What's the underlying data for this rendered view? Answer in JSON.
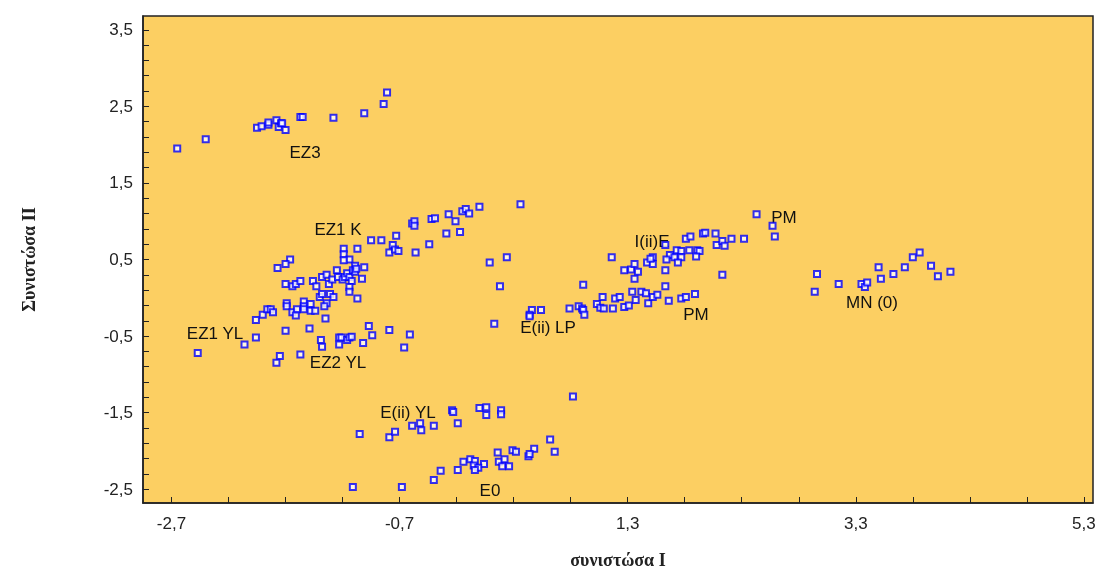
{
  "chart_data": {
    "type": "scatter",
    "xlabel": "συνιστώσα I",
    "ylabel": "Συνιστώσα II",
    "marker": "square",
    "grid": false,
    "xlim": [
      -2.95,
      5.38
    ],
    "ylim": [
      -2.68,
      3.68
    ],
    "xticks": [
      {
        "value": -2.7,
        "label": "-2,7"
      },
      {
        "value": -2.2,
        "label": null
      },
      {
        "value": -1.7,
        "label": null
      },
      {
        "value": -1.2,
        "label": null
      },
      {
        "value": -0.7,
        "label": "-0,7"
      },
      {
        "value": -0.2,
        "label": null
      },
      {
        "value": 0.3,
        "label": null
      },
      {
        "value": 0.8,
        "label": null
      },
      {
        "value": 1.3,
        "label": "1,3"
      },
      {
        "value": 1.8,
        "label": null
      },
      {
        "value": 2.3,
        "label": null
      },
      {
        "value": 2.8,
        "label": null
      },
      {
        "value": 3.3,
        "label": "3,3"
      },
      {
        "value": 3.8,
        "label": null
      },
      {
        "value": 4.3,
        "label": null
      },
      {
        "value": 4.8,
        "label": null
      },
      {
        "value": 5.3,
        "label": "5,3"
      }
    ],
    "yticks": [
      {
        "value": -2.5,
        "label": "-2,5"
      },
      {
        "value": -2.3,
        "label": null
      },
      {
        "value": -2.1,
        "label": null
      },
      {
        "value": -1.9,
        "label": null
      },
      {
        "value": -1.7,
        "label": null
      },
      {
        "value": -1.5,
        "label": "-1,5"
      },
      {
        "value": -1.3,
        "label": null
      },
      {
        "value": -1.1,
        "label": null
      },
      {
        "value": -0.9,
        "label": null
      },
      {
        "value": -0.7,
        "label": null
      },
      {
        "value": -0.5,
        "label": "-0,5"
      },
      {
        "value": -0.3,
        "label": null
      },
      {
        "value": -0.1,
        "label": null
      },
      {
        "value": 0.1,
        "label": null
      },
      {
        "value": 0.3,
        "label": null
      },
      {
        "value": 0.5,
        "label": "0,5"
      },
      {
        "value": 0.7,
        "label": null
      },
      {
        "value": 0.9,
        "label": null
      },
      {
        "value": 1.1,
        "label": null
      },
      {
        "value": 1.3,
        "label": null
      },
      {
        "value": 1.5,
        "label": "1,5"
      },
      {
        "value": 1.7,
        "label": null
      },
      {
        "value": 1.9,
        "label": null
      },
      {
        "value": 2.1,
        "label": null
      },
      {
        "value": 2.3,
        "label": null
      },
      {
        "value": 2.5,
        "label": "2,5"
      },
      {
        "value": 2.7,
        "label": null
      },
      {
        "value": 2.9,
        "label": null
      },
      {
        "value": 3.1,
        "label": null
      },
      {
        "value": 3.3,
        "label": null
      },
      {
        "value": 3.5,
        "label": "3,5"
      }
    ],
    "annotations": [
      "EZ3",
      "EZ1 K",
      "EZ1 YL",
      "EZ2 YL",
      "E(ii) YL",
      "E0",
      "E(ii) LP",
      "I(ii)E",
      "PM",
      "PM",
      "MN (0)"
    ],
    "series": [
      {
        "color": "#0000ff",
        "x": [
          -2.65,
          -2.4,
          -1.95,
          -1.91,
          -1.85,
          -1.85,
          -1.78,
          -1.76,
          -1.74,
          -1.73,
          -1.7,
          -1.57,
          -1.55,
          -1.28,
          -1.01,
          -0.84,
          -0.81,
          -1.19,
          -1.19,
          -1.07,
          -0.95,
          -0.86,
          -0.76,
          -0.73,
          -0.79,
          -0.74,
          -0.71,
          -0.59,
          -0.57,
          -0.57,
          -0.56,
          -0.44,
          -0.42,
          -0.39,
          -0.29,
          -0.27,
          -0.21,
          -0.17,
          -0.15,
          -0.12,
          -1.66,
          -1.14,
          -0.09,
          0.0,
          0.36,
          0.24,
          1.16,
          2.43,
          2.57,
          2.59,
          1.63,
          1.81,
          1.85,
          1.96,
          1.98,
          2.07,
          2.08,
          2.13,
          2.15,
          2.21,
          2.32,
          1.73,
          1.77,
          1.84,
          1.91,
          1.93,
          1.9,
          1.67,
          1.71,
          1.77,
          1.52,
          1.64,
          3.8,
          3.86,
          2.96,
          2.94,
          3.15,
          3.35,
          3.38,
          3.4,
          3.5,
          3.52,
          3.63,
          3.73,
          3.96,
          4.02,
          4.13,
          -1.77,
          -1.7,
          -1.7,
          -1.64,
          -1.61,
          -1.57,
          -1.46,
          -1.43,
          -1.25,
          -1.19,
          -1.09,
          -1.01,
          -1.38,
          -1.34,
          -1.32,
          -1.29,
          -1.24,
          -1.2,
          -1.18,
          -1.16,
          -1.14,
          -1.12,
          -1.11,
          -1.09,
          -1.08,
          -1.03,
          -1.14,
          -1.14,
          -1.07,
          -1.4,
          -1.38,
          -1.34,
          -1.31,
          -1.28,
          -1.36,
          -1.35,
          -1.69,
          -1.69,
          -1.64,
          -1.6,
          -1.61,
          -1.54,
          -1.54,
          -1.54,
          -1.48,
          -1.48,
          -1.44,
          -1.96,
          -1.9,
          -1.86,
          -1.83,
          -1.81,
          -1.7,
          -1.96,
          -2.06,
          -2.47,
          -1.49,
          -1.75,
          -1.78,
          -1.57,
          -1.39,
          -1.38,
          -1.23,
          -1.21,
          -1.23,
          -1.16,
          -1.14,
          -1.12,
          -1.02,
          -0.97,
          -0.94,
          -0.79,
          -0.66,
          -0.61,
          -0.24,
          -0.23,
          -0.19,
          -0.59,
          -0.52,
          -0.51,
          -0.4,
          -1.05,
          -0.79,
          -0.74,
          -0.19,
          -0.14,
          -0.34,
          -0.4,
          -1.11,
          -0.68,
          0.09,
          0.18,
          0.91,
          0.13,
          0.46,
          0.44,
          0.44,
          0.54,
          0.79,
          0.87,
          0.9,
          0.91,
          0.92,
          1.03,
          1.06,
          1.09,
          1.08,
          1.17,
          1.19,
          1.23,
          1.27,
          1.31,
          1.34,
          1.37,
          1.42,
          1.46,
          1.48,
          1.52,
          1.56,
          1.63,
          1.66,
          1.77,
          1.81,
          1.89,
          2.13,
          1.27,
          1.33,
          1.36,
          1.39,
          1.36,
          1.47,
          1.52,
          1.5,
          1.63,
          1.74,
          0.82,
          0.0,
          0.06,
          0.06,
          0.19,
          0.19,
          0.62,
          0.66,
          0.48,
          0.43,
          0.44,
          0.29,
          0.32,
          0.16,
          0.17,
          0.22,
          0.2,
          0.26,
          0.04,
          -0.08,
          -0.04,
          -0.05,
          -0.01,
          -0.04
        ],
        "values": [
          1.95,
          2.07,
          2.22,
          2.24,
          2.26,
          2.29,
          2.32,
          2.23,
          2.28,
          2.28,
          2.19,
          2.36,
          2.36,
          2.35,
          2.41,
          2.53,
          2.68,
          0.64,
          0.57,
          0.64,
          0.75,
          0.75,
          0.69,
          0.81,
          0.59,
          0.63,
          0.61,
          0.97,
          1.0,
          0.94,
          0.59,
          0.7,
          1.03,
          1.04,
          0.84,
          1.09,
          1.0,
          0.86,
          1.13,
          1.16,
          0.5,
          0.5,
          1.1,
          1.19,
          1.22,
          0.53,
          0.53,
          1.09,
          0.94,
          0.8,
          0.69,
          0.77,
          0.8,
          0.84,
          0.85,
          0.84,
          0.69,
          0.74,
          0.68,
          0.77,
          0.77,
          0.62,
          0.61,
          0.62,
          0.62,
          0.61,
          0.54,
          0.56,
          0.53,
          0.53,
          0.53,
          0.5,
          0.53,
          0.59,
          0.31,
          0.08,
          0.18,
          0.18,
          0.14,
          0.2,
          0.4,
          0.25,
          0.31,
          0.4,
          0.42,
          0.28,
          0.34,
          0.39,
          0.44,
          0.18,
          0.15,
          0.18,
          0.22,
          0.22,
          0.15,
          0.36,
          0.49,
          0.42,
          0.4,
          0.27,
          0.3,
          0.18,
          0.24,
          0.27,
          0.24,
          0.27,
          0.32,
          0.27,
          0.22,
          0.36,
          0.34,
          0.38,
          0.25,
          0.14,
          0.08,
          -0.01,
          0.01,
          0.05,
          -0.07,
          0.05,
          0.01,
          -0.11,
          -0.27,
          -0.07,
          -0.11,
          -0.19,
          -0.15,
          -0.23,
          -0.05,
          -0.11,
          -0.15,
          -0.08,
          -0.17,
          -0.17,
          -0.29,
          -0.22,
          -0.15,
          -0.15,
          -0.19,
          -0.43,
          -0.52,
          -0.61,
          -0.72,
          -0.4,
          -0.76,
          -0.85,
          -0.74,
          -0.55,
          -0.64,
          -0.52,
          -0.52,
          -0.61,
          -0.55,
          -0.52,
          -0.51,
          -0.59,
          -0.37,
          -0.49,
          -0.42,
          -0.65,
          -0.48,
          -1.47,
          -1.49,
          -1.64,
          -1.67,
          -1.64,
          -1.73,
          -1.67,
          -1.78,
          -1.82,
          -1.75,
          -2.25,
          -2.14,
          -2.26,
          -2.38,
          -2.47,
          -2.47,
          0.46,
          0.15,
          0.17,
          -0.34,
          -0.16,
          -0.22,
          -0.24,
          -0.16,
          -0.14,
          -0.11,
          -0.14,
          -0.16,
          -0.22,
          -0.08,
          -0.13,
          -0.14,
          0.01,
          -0.14,
          -0.01,
          0.01,
          -0.12,
          -0.1,
          0.08,
          -0.03,
          0.08,
          0.06,
          -0.07,
          0.01,
          0.04,
          0.15,
          -0.04,
          -0.01,
          0.01,
          0.05,
          0.3,
          0.36,
          0.37,
          0.44,
          0.34,
          0.25,
          0.46,
          0.44,
          0.51,
          0.36,
          0.46,
          -1.29,
          -1.44,
          -1.43,
          -1.53,
          -1.47,
          -1.52,
          -1.85,
          -2.01,
          -1.97,
          -2.07,
          -2.04,
          -1.99,
          -2.01,
          -2.02,
          -2.14,
          -2.11,
          -2.2,
          -2.2,
          -2.17,
          -2.11,
          -2.13,
          -2.19,
          -2.22,
          -2.25
        ]
      }
    ]
  }
}
